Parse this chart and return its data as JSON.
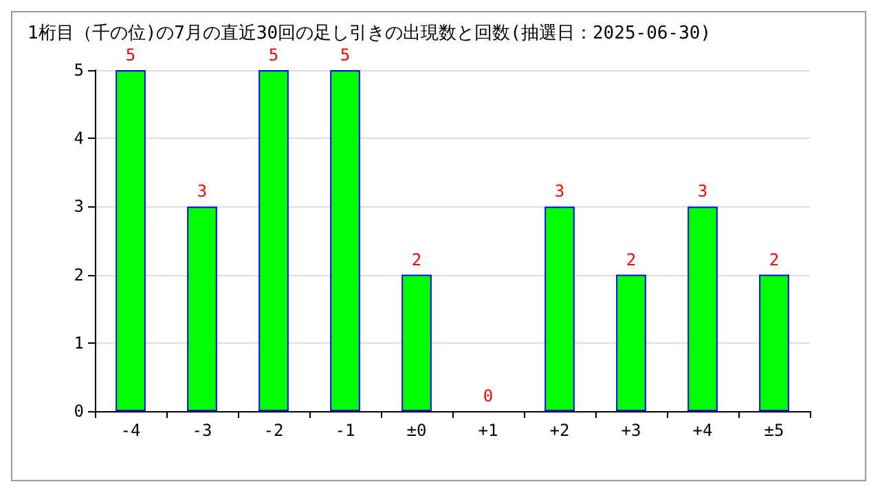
{
  "chart_data": {
    "type": "bar",
    "title": "1桁目（千の位)の7月の直近30回の足し引きの出現数と回数(抽選日：2025-06-30)",
    "categories": [
      "-4",
      "-3",
      "-2",
      "-1",
      "±0",
      "+1",
      "+2",
      "+3",
      "+4",
      "±5"
    ],
    "values": [
      5,
      3,
      5,
      5,
      2,
      0,
      3,
      2,
      3,
      2
    ],
    "color": "#00ff00",
    "ylim": [
      0,
      5
    ],
    "yticks": [
      0,
      1,
      2,
      3,
      4,
      5
    ],
    "grid": "y",
    "data_labels": true
  }
}
